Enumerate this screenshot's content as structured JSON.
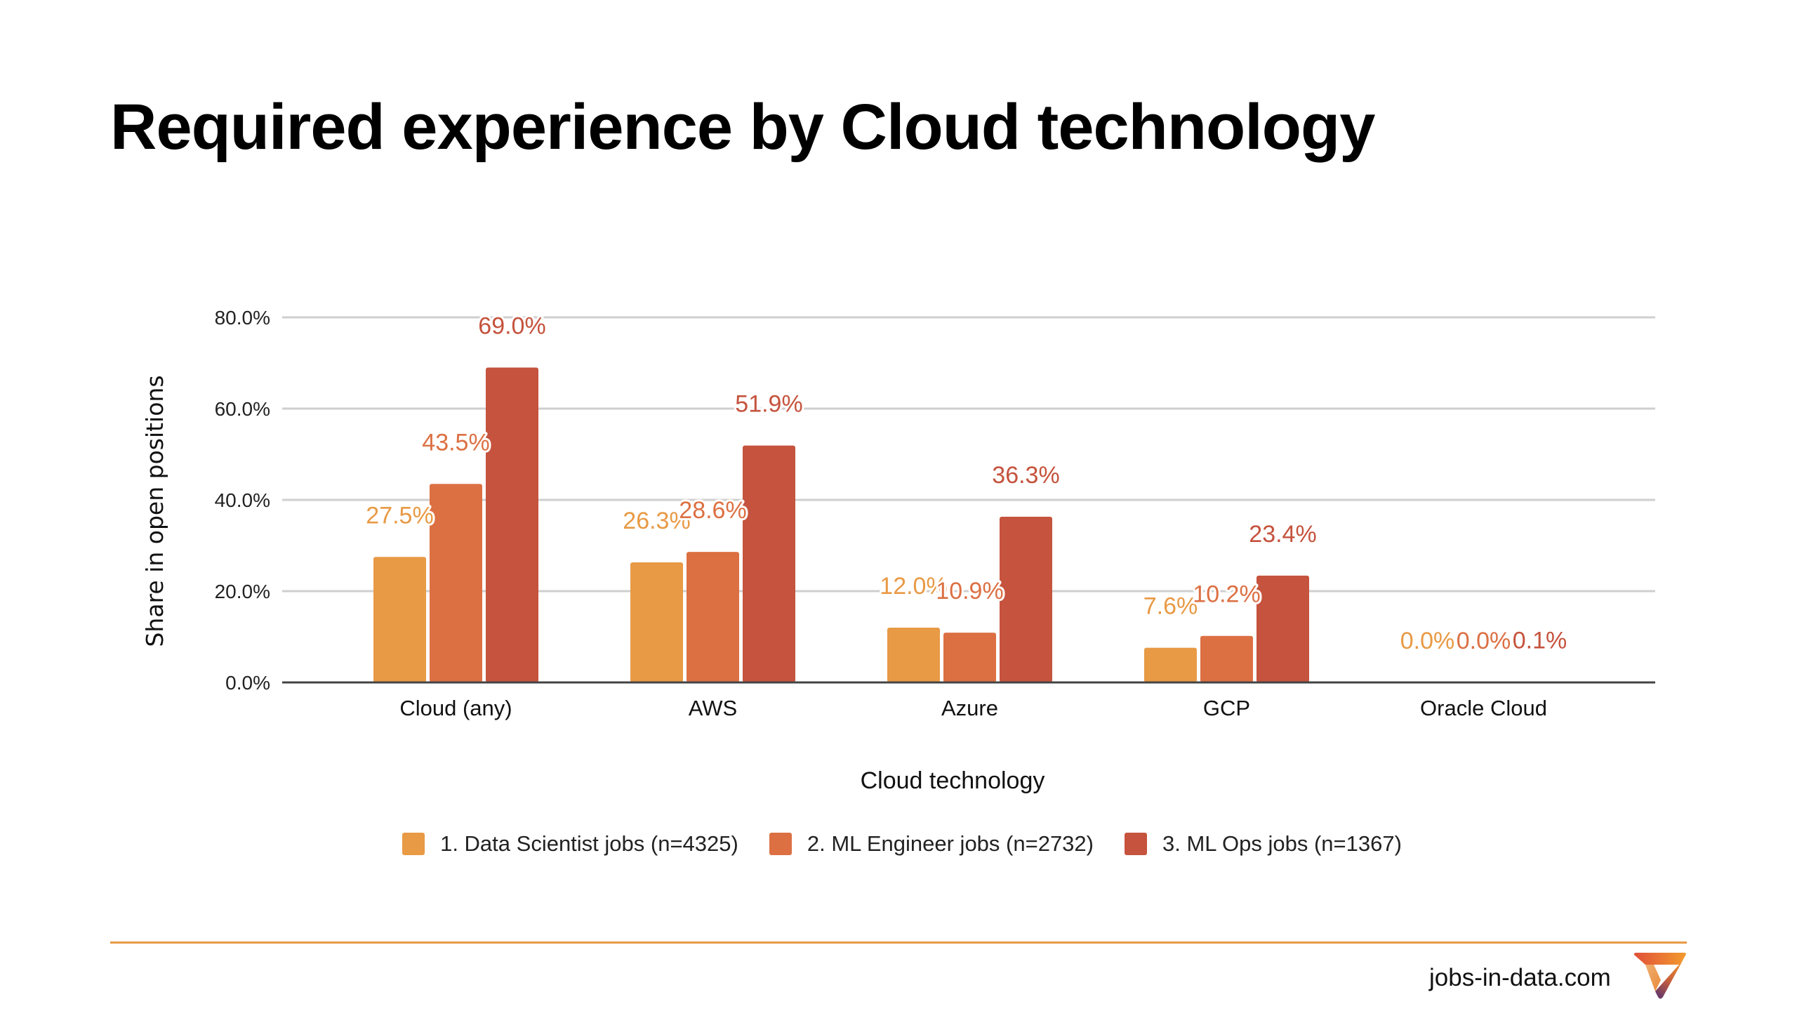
{
  "page": {
    "title": "Required experience by Cloud technology",
    "footer": {
      "site": "jobs-in-data.com",
      "logo": "jobs-in-data-logo-icon",
      "rule_color": "#E89A45"
    }
  },
  "chart_data": {
    "type": "bar",
    "title": "Required experience by Cloud technology",
    "xlabel": "Cloud technology",
    "ylabel": "Share in open positions",
    "ylim": [
      0,
      80
    ],
    "yticks": [
      0,
      20,
      40,
      60,
      80
    ],
    "ytick_labels": [
      "0.0%",
      "20.0%",
      "40.0%",
      "60.0%",
      "80.0%"
    ],
    "grid": true,
    "legend_position": "bottom",
    "categories": [
      "Cloud (any)",
      "AWS",
      "Azure",
      "GCP",
      "Oracle Cloud"
    ],
    "series": [
      {
        "name": "1. Data Scientist jobs (n=4325)",
        "color": "#E89A45",
        "values": [
          27.5,
          26.3,
          12.0,
          7.6,
          0.0
        ],
        "labels": [
          "27.5%",
          "26.3%",
          "12.0%",
          "7.6%",
          "0.0%"
        ]
      },
      {
        "name": "2. ML Engineer jobs (n=2732)",
        "color": "#DC7043",
        "values": [
          43.5,
          28.6,
          10.9,
          10.2,
          0.0
        ],
        "labels": [
          "43.5%",
          "28.6%",
          "10.9%",
          "10.2%",
          "0.0%"
        ]
      },
      {
        "name": "3. ML Ops jobs (n=1367)",
        "color": "#C5533D",
        "values": [
          69.0,
          51.9,
          36.3,
          23.4,
          0.1
        ],
        "labels": [
          "69.0%",
          "51.9%",
          "36.3%",
          "23.4%",
          "0.1%"
        ]
      }
    ]
  }
}
